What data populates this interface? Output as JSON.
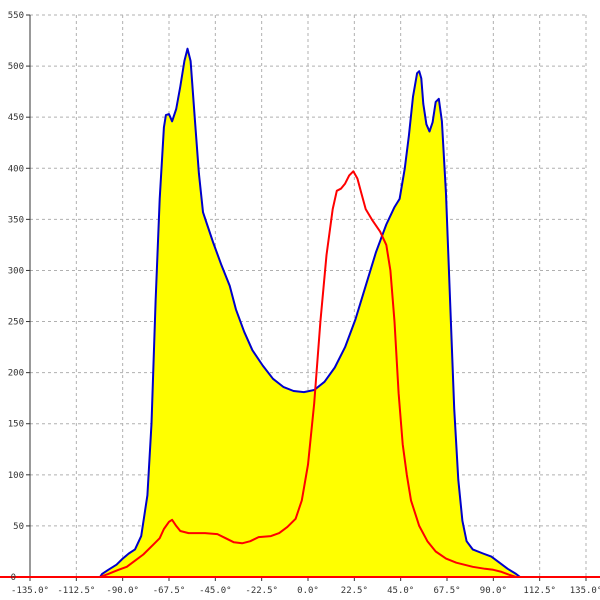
{
  "chart_data": {
    "type": "area",
    "title": "",
    "xlabel": "",
    "ylabel": "",
    "xlim": [
      -135,
      135
    ],
    "ylim": [
      0,
      550
    ],
    "grid": true,
    "x_ticks": [
      -135,
      -112.5,
      -90,
      -67.5,
      -45,
      -22.5,
      0,
      22.5,
      45,
      67.5,
      90,
      112.5,
      135
    ],
    "x_tick_labels": [
      "-135.0°",
      "-112.5°",
      "-90.0°",
      "-67.5°",
      "-45.0°",
      "-22.5°",
      "0.0°",
      "22.5°",
      "45.0°",
      "67.5°",
      "90.0°",
      "112.5°",
      "135.0°"
    ],
    "y_ticks": [
      50,
      100,
      150,
      200,
      250,
      300,
      350,
      400,
      450,
      500,
      550
    ],
    "y_tick_labels": [
      "50",
      "100",
      "150",
      "200",
      "250",
      "300",
      "350",
      "400",
      "450",
      "500",
      "550"
    ],
    "colors": {
      "fill": "#ffff00",
      "blue_line": "#0000cc",
      "red_line": "#ff0000",
      "baseline": "#ff0000",
      "grid": "#b0b0b0"
    },
    "series": [
      {
        "color": "blue",
        "filled": true,
        "points": [
          [
            -101,
            0
          ],
          [
            -100,
            3
          ],
          [
            -97,
            7
          ],
          [
            -93,
            12
          ],
          [
            -90,
            18
          ],
          [
            -87,
            23
          ],
          [
            -84,
            27
          ],
          [
            -81,
            40
          ],
          [
            -78,
            80
          ],
          [
            -76,
            150
          ],
          [
            -74,
            270
          ],
          [
            -72,
            370
          ],
          [
            -70,
            440
          ],
          [
            -69,
            452
          ],
          [
            -67.5,
            453
          ],
          [
            -66,
            446
          ],
          [
            -64,
            458
          ],
          [
            -62,
            480
          ],
          [
            -60,
            505
          ],
          [
            -58.5,
            517
          ],
          [
            -57,
            505
          ],
          [
            -55,
            450
          ],
          [
            -53,
            395
          ],
          [
            -51,
            357
          ],
          [
            -49,
            345
          ],
          [
            -46,
            327
          ],
          [
            -42,
            305
          ],
          [
            -38,
            285
          ],
          [
            -35,
            262
          ],
          [
            -31,
            240
          ],
          [
            -27,
            222
          ],
          [
            -22,
            207
          ],
          [
            -17,
            194
          ],
          [
            -12,
            186
          ],
          [
            -7,
            182
          ],
          [
            -2,
            181
          ],
          [
            3,
            183
          ],
          [
            8,
            191
          ],
          [
            13,
            205
          ],
          [
            18,
            225
          ],
          [
            23,
            252
          ],
          [
            28,
            285
          ],
          [
            33,
            318
          ],
          [
            38,
            345
          ],
          [
            42,
            362
          ],
          [
            44.5,
            370
          ],
          [
            47,
            400
          ],
          [
            49,
            432
          ],
          [
            51,
            470
          ],
          [
            53,
            493
          ],
          [
            54,
            495
          ],
          [
            55,
            488
          ],
          [
            56,
            463
          ],
          [
            57.5,
            443
          ],
          [
            59,
            436
          ],
          [
            60.5,
            445
          ],
          [
            62,
            465
          ],
          [
            63.5,
            468
          ],
          [
            65,
            446
          ],
          [
            67,
            375
          ],
          [
            69,
            270
          ],
          [
            71,
            165
          ],
          [
            73,
            95
          ],
          [
            75,
            55
          ],
          [
            77,
            35
          ],
          [
            80,
            27
          ],
          [
            85,
            23
          ],
          [
            89,
            20
          ],
          [
            93,
            14
          ],
          [
            97,
            8
          ],
          [
            101,
            3
          ],
          [
            103,
            0
          ]
        ]
      },
      {
        "color": "red",
        "filled": false,
        "points": [
          [
            -101,
            0
          ],
          [
            -97,
            3
          ],
          [
            -92,
            7
          ],
          [
            -88,
            10
          ],
          [
            -84,
            16
          ],
          [
            -80,
            22
          ],
          [
            -75,
            32
          ],
          [
            -72,
            38
          ],
          [
            -70,
            47
          ],
          [
            -67.5,
            54
          ],
          [
            -66,
            56
          ],
          [
            -64,
            50
          ],
          [
            -62,
            45
          ],
          [
            -58,
            43
          ],
          [
            -50,
            43
          ],
          [
            -44,
            42
          ],
          [
            -40,
            38
          ],
          [
            -36,
            34
          ],
          [
            -32,
            33
          ],
          [
            -28,
            35
          ],
          [
            -24,
            39
          ],
          [
            -18,
            40
          ],
          [
            -14,
            43
          ],
          [
            -10,
            49
          ],
          [
            -6,
            57
          ],
          [
            -3,
            75
          ],
          [
            0,
            110
          ],
          [
            3,
            170
          ],
          [
            6,
            250
          ],
          [
            9,
            315
          ],
          [
            12,
            360
          ],
          [
            14,
            378
          ],
          [
            16,
            380
          ],
          [
            18,
            385
          ],
          [
            20,
            393
          ],
          [
            22,
            397
          ],
          [
            24,
            390
          ],
          [
            26,
            375
          ],
          [
            28,
            360
          ],
          [
            31,
            350
          ],
          [
            35,
            338
          ],
          [
            38,
            325
          ],
          [
            40,
            300
          ],
          [
            42,
            250
          ],
          [
            44,
            180
          ],
          [
            46,
            130
          ],
          [
            48,
            100
          ],
          [
            50,
            75
          ],
          [
            54,
            50
          ],
          [
            58,
            35
          ],
          [
            62,
            25
          ],
          [
            67,
            18
          ],
          [
            72,
            14
          ],
          [
            80,
            10
          ],
          [
            86,
            8
          ],
          [
            90,
            7
          ],
          [
            94,
            5
          ],
          [
            98,
            2
          ],
          [
            101,
            0
          ]
        ]
      }
    ]
  }
}
